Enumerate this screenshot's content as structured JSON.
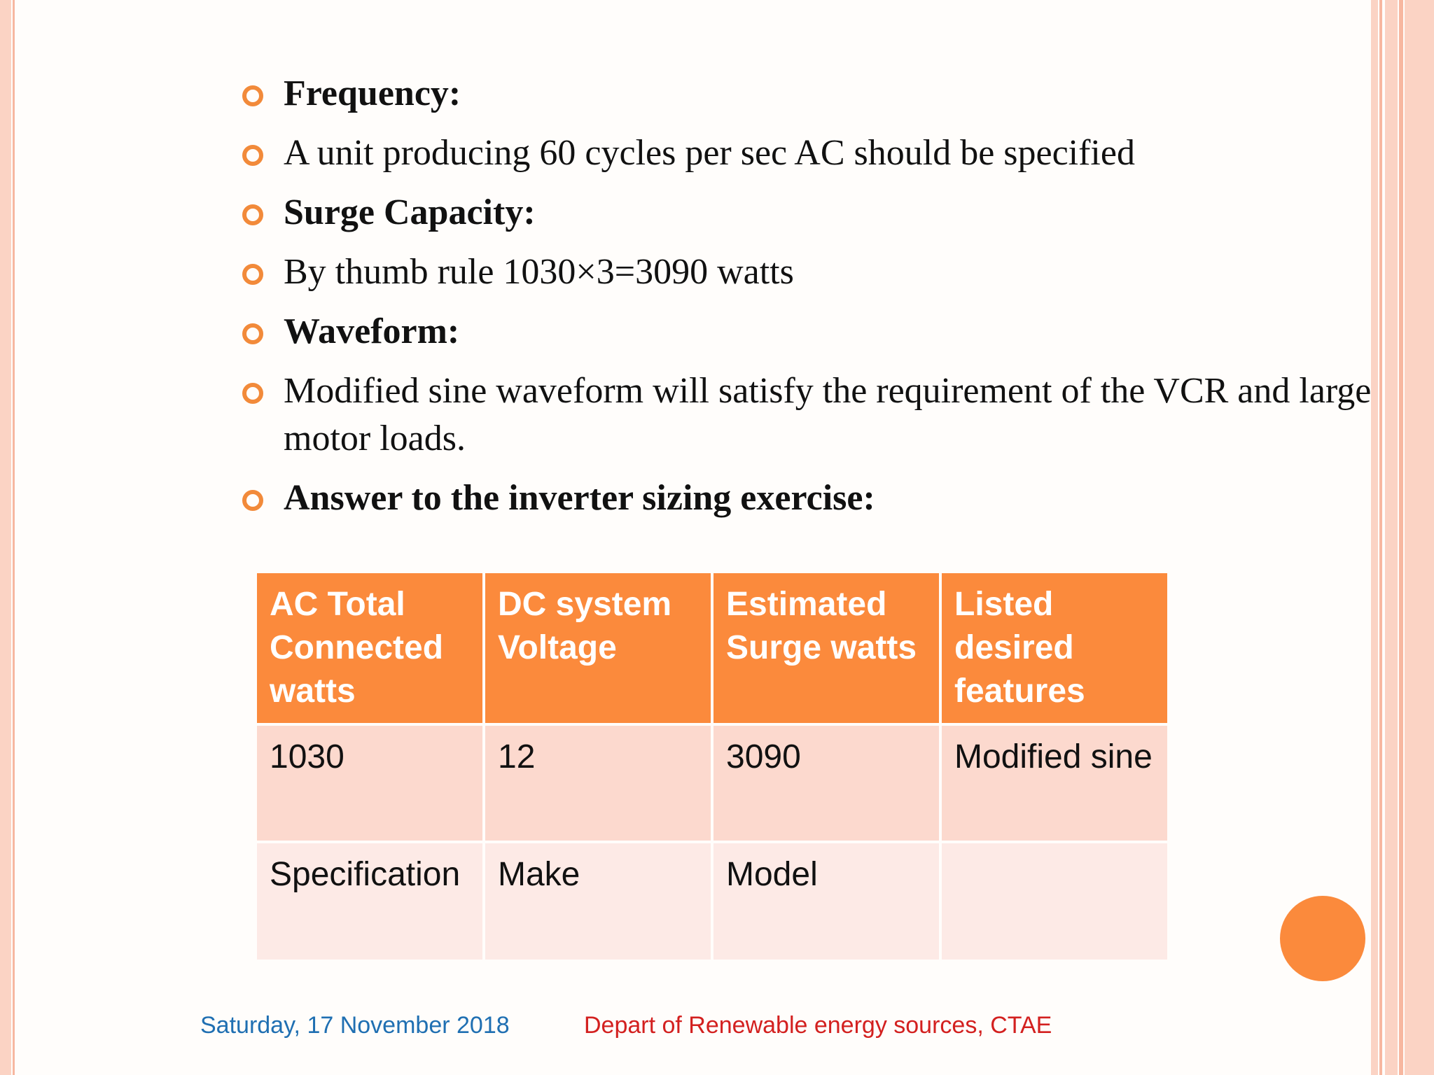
{
  "bullets": [
    {
      "text": "Frequency:",
      "bold": true
    },
    {
      "text": "A unit producing 60 cycles per sec AC should be specified",
      "bold": false
    },
    {
      "text": "Surge Capacity:",
      "bold": true
    },
    {
      "text": "By thumb rule  1030×3=3090 watts",
      "bold": false
    },
    {
      "text": "Waveform:",
      "bold": true
    },
    {
      "text": "Modified sine waveform will satisfy the requirement of the VCR and large motor loads.",
      "bold": false
    },
    {
      "text": "Answer to the inverter sizing exercise:",
      "bold": true
    }
  ],
  "table": {
    "headers": [
      "AC Total Connected watts",
      "DC system Voltage",
      "Estimated Surge watts",
      "Listed desired features"
    ],
    "rows": [
      [
        "1030",
        "12",
        "3090",
        "Modified sine"
      ],
      [
        "Specification",
        "Make",
        "Model",
        ""
      ]
    ]
  },
  "footer": {
    "date": "Saturday, 17 November 2018",
    "department": "Depart of Renewable energy sources, CTAE"
  },
  "colors": {
    "accent": "#fb8a3c",
    "bullet": "#f28a3a",
    "row1": "#fcd9ce",
    "row2": "#fdeae6",
    "date_text": "#1f6fb2",
    "dept_text": "#d3201f"
  }
}
